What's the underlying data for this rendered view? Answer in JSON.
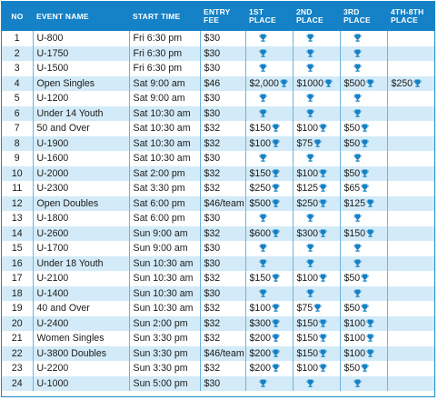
{
  "headers": {
    "no": "NO",
    "event": "EVENT NAME",
    "start": "START TIME",
    "fee": "ENTRY FEE",
    "p1": "1ST PLACE",
    "p2": "2ND PLACE",
    "p3": "3RD PLACE",
    "p48": "4TH-8TH PLACE"
  },
  "colors": {
    "header_bg": "#1581c6",
    "stripe": "#d3ebf8",
    "trophy": "#1581c6"
  },
  "icons": {
    "prize": "trophy-icon"
  },
  "rows": [
    {
      "no": "1",
      "event": "U-800",
      "start": "Fri 6:30 pm",
      "fee": "$30",
      "p1": "",
      "p2": "",
      "p3": "",
      "p48": null
    },
    {
      "no": "2",
      "event": "U-1750",
      "start": "Fri 6:30 pm",
      "fee": "$30",
      "p1": "",
      "p2": "",
      "p3": "",
      "p48": null
    },
    {
      "no": "3",
      "event": "U-1500",
      "start": "Fri 6:30 pm",
      "fee": "$30",
      "p1": "",
      "p2": "",
      "p3": "",
      "p48": null
    },
    {
      "no": "4",
      "event": "Open Singles",
      "start": "Sat 9:00 am",
      "fee": "$46",
      "p1": "$2,000",
      "p2": "$1000",
      "p3": "$500",
      "p48": "$250"
    },
    {
      "no": "5",
      "event": "U-1200",
      "start": "Sat 9:00 am",
      "fee": "$30",
      "p1": "",
      "p2": "",
      "p3": "",
      "p48": null
    },
    {
      "no": "6",
      "event": "Under 14 Youth",
      "start": "Sat 10:30 am",
      "fee": "$30",
      "p1": "",
      "p2": "",
      "p3": "",
      "p48": null
    },
    {
      "no": "7",
      "event": "50 and Over",
      "start": "Sat 10:30 am",
      "fee": "$32",
      "p1": "$150",
      "p2": "$100",
      "p3": "$50",
      "p48": null
    },
    {
      "no": "8",
      "event": "U-1900",
      "start": "Sat 10:30 am",
      "fee": "$32",
      "p1": "$100",
      "p2": "$75",
      "p3": "$50",
      "p48": null
    },
    {
      "no": "9",
      "event": "U-1600",
      "start": "Sat 10:30 am",
      "fee": "$30",
      "p1": "",
      "p2": "",
      "p3": "",
      "p48": null
    },
    {
      "no": "10",
      "event": "U-2000",
      "start": "Sat 2:00 pm",
      "fee": "$32",
      "p1": "$150",
      "p2": "$100",
      "p3": "$50",
      "p48": null
    },
    {
      "no": "11",
      "event": "U-2300",
      "start": "Sat 3:30 pm",
      "fee": "$32",
      "p1": "$250",
      "p2": "$125",
      "p3": "$65",
      "p48": null
    },
    {
      "no": "12",
      "event": "Open Doubles",
      "start": "Sat 6:00 pm",
      "fee": "$46/team",
      "p1": "$500",
      "p2": "$250",
      "p3": "$125",
      "p48": null
    },
    {
      "no": "13",
      "event": "U-1800",
      "start": "Sat 6:00 pm",
      "fee": "$30",
      "p1": "",
      "p2": "",
      "p3": "",
      "p48": null
    },
    {
      "no": "14",
      "event": "U-2600",
      "start": "Sun 9:00 am",
      "fee": "$32",
      "p1": "$600",
      "p2": "$300",
      "p3": "$150",
      "p48": null
    },
    {
      "no": "15",
      "event": "U-1700",
      "start": "Sun 9:00 am",
      "fee": "$30",
      "p1": "",
      "p2": "",
      "p3": "",
      "p48": null
    },
    {
      "no": "16",
      "event": "Under 18 Youth",
      "start": "Sun 10:30 am",
      "fee": "$30",
      "p1": "",
      "p2": "",
      "p3": "",
      "p48": null
    },
    {
      "no": "17",
      "event": "U-2100",
      "start": "Sun 10:30 am",
      "fee": "$32",
      "p1": "$150",
      "p2": "$100",
      "p3": "$50",
      "p48": null
    },
    {
      "no": "18",
      "event": "U-1400",
      "start": "Sun 10:30 am",
      "fee": "$30",
      "p1": "",
      "p2": "",
      "p3": "",
      "p48": null
    },
    {
      "no": "19",
      "event": "40 and Over",
      "start": "Sun 10:30 am",
      "fee": "$32",
      "p1": "$100",
      "p2": "$75",
      "p3": "$50",
      "p48": null
    },
    {
      "no": "20",
      "event": "U-2400",
      "start": "Sun 2:00 pm",
      "fee": "$32",
      "p1": "$300",
      "p2": "$150",
      "p3": "$100",
      "p48": null
    },
    {
      "no": "21",
      "event": "Women Singles",
      "start": "Sun 3:30 pm",
      "fee": "$32",
      "p1": "$200",
      "p2": "$150",
      "p3": "$100",
      "p48": null
    },
    {
      "no": "22",
      "event": "U-3800 Doubles",
      "start": "Sun 3:30 pm",
      "fee": "$46/team",
      "p1": "$200",
      "p2": "$150",
      "p3": "$100",
      "p48": null
    },
    {
      "no": "23",
      "event": "U-2200",
      "start": "Sun 3:30 pm",
      "fee": "$32",
      "p1": "$200",
      "p2": "$100",
      "p3": "$50",
      "p48": null
    },
    {
      "no": "24",
      "event": "U-1000",
      "start": "Sun 5:00 pm",
      "fee": "$30",
      "p1": "",
      "p2": "",
      "p3": "",
      "p48": null
    }
  ]
}
